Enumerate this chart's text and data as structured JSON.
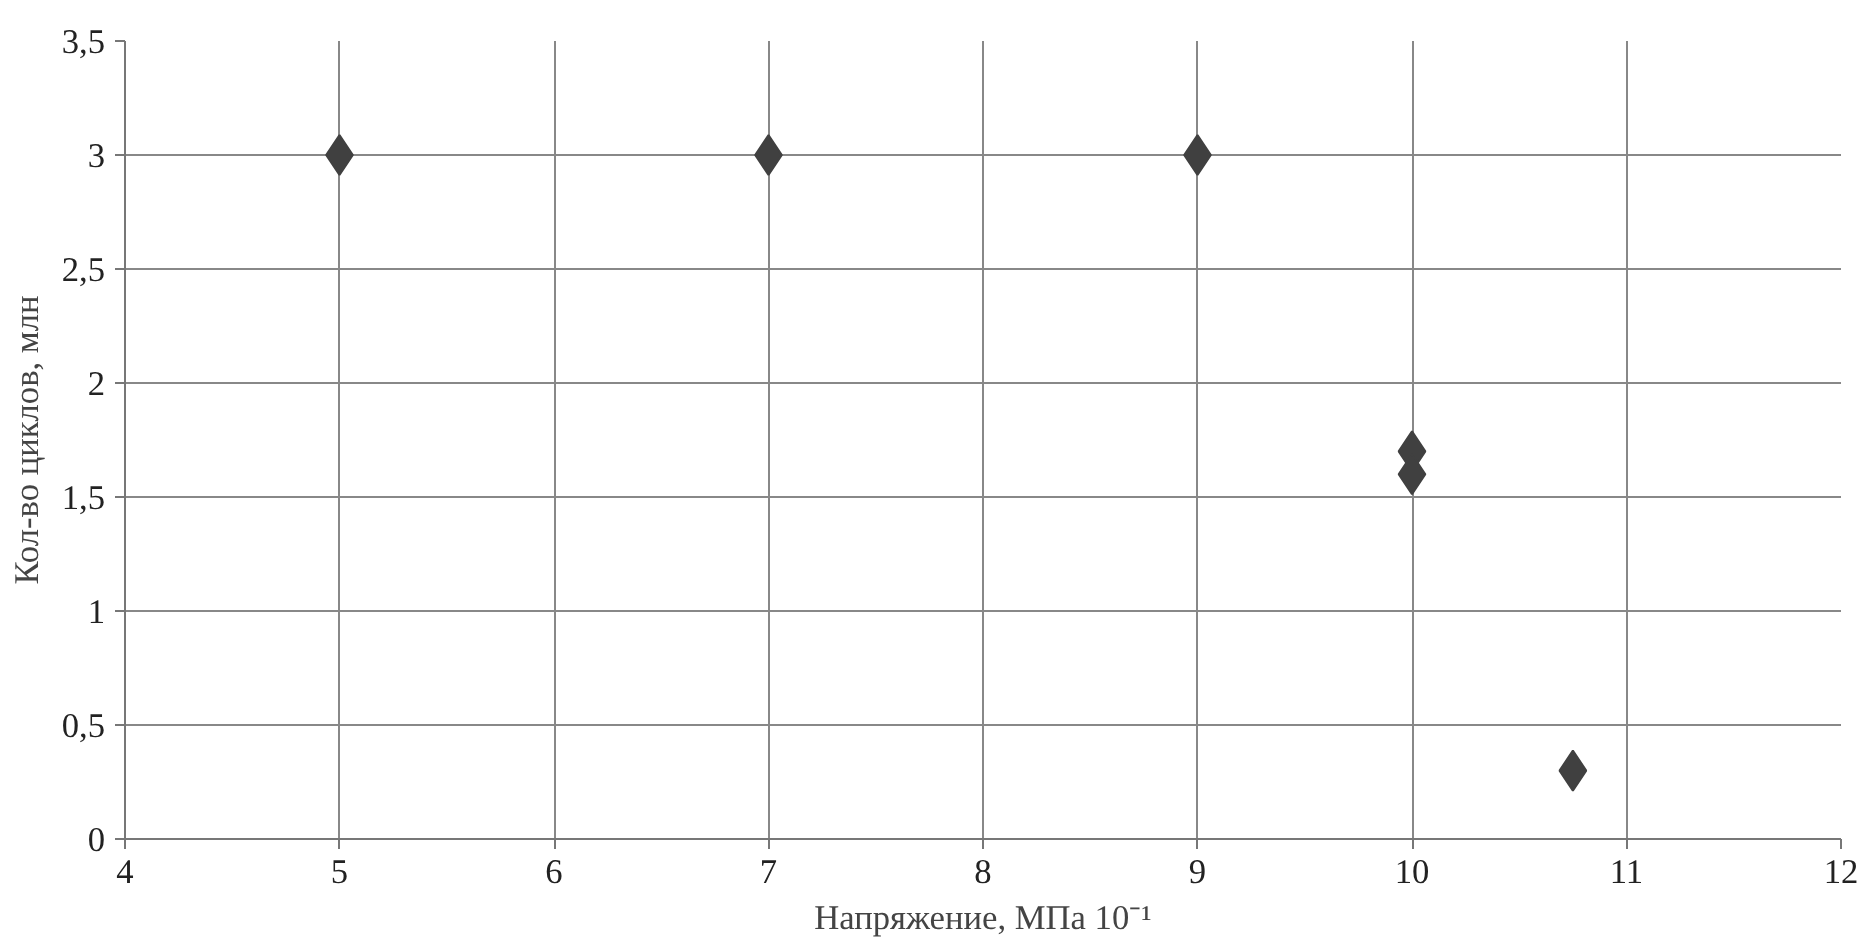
{
  "chart_data": {
    "type": "scatter",
    "xlabel": "Напряжение, МПа 10⁻¹",
    "ylabel": "Кол-во циклов, млн",
    "x": [
      5,
      7,
      9,
      10,
      10,
      10.75
    ],
    "series": [
      {
        "color": "#404040",
        "values": [
          3,
          3,
          3,
          1.7,
          1.6,
          0.3
        ]
      }
    ],
    "xlim": [
      4,
      12
    ],
    "xticks": [
      4,
      5,
      6,
      7,
      8,
      9,
      10,
      11,
      12
    ],
    "ylim": [
      0,
      3.5
    ],
    "yticks": [
      0,
      {
        "value": 0.5,
        "label": "0,5"
      },
      1,
      {
        "value": 1.5,
        "label": "1,5"
      },
      2,
      {
        "value": 2.5,
        "label": "2,5"
      },
      3,
      {
        "value": 3.5,
        "label": "3,5"
      }
    ],
    "grid": true,
    "marker": "diamond"
  }
}
